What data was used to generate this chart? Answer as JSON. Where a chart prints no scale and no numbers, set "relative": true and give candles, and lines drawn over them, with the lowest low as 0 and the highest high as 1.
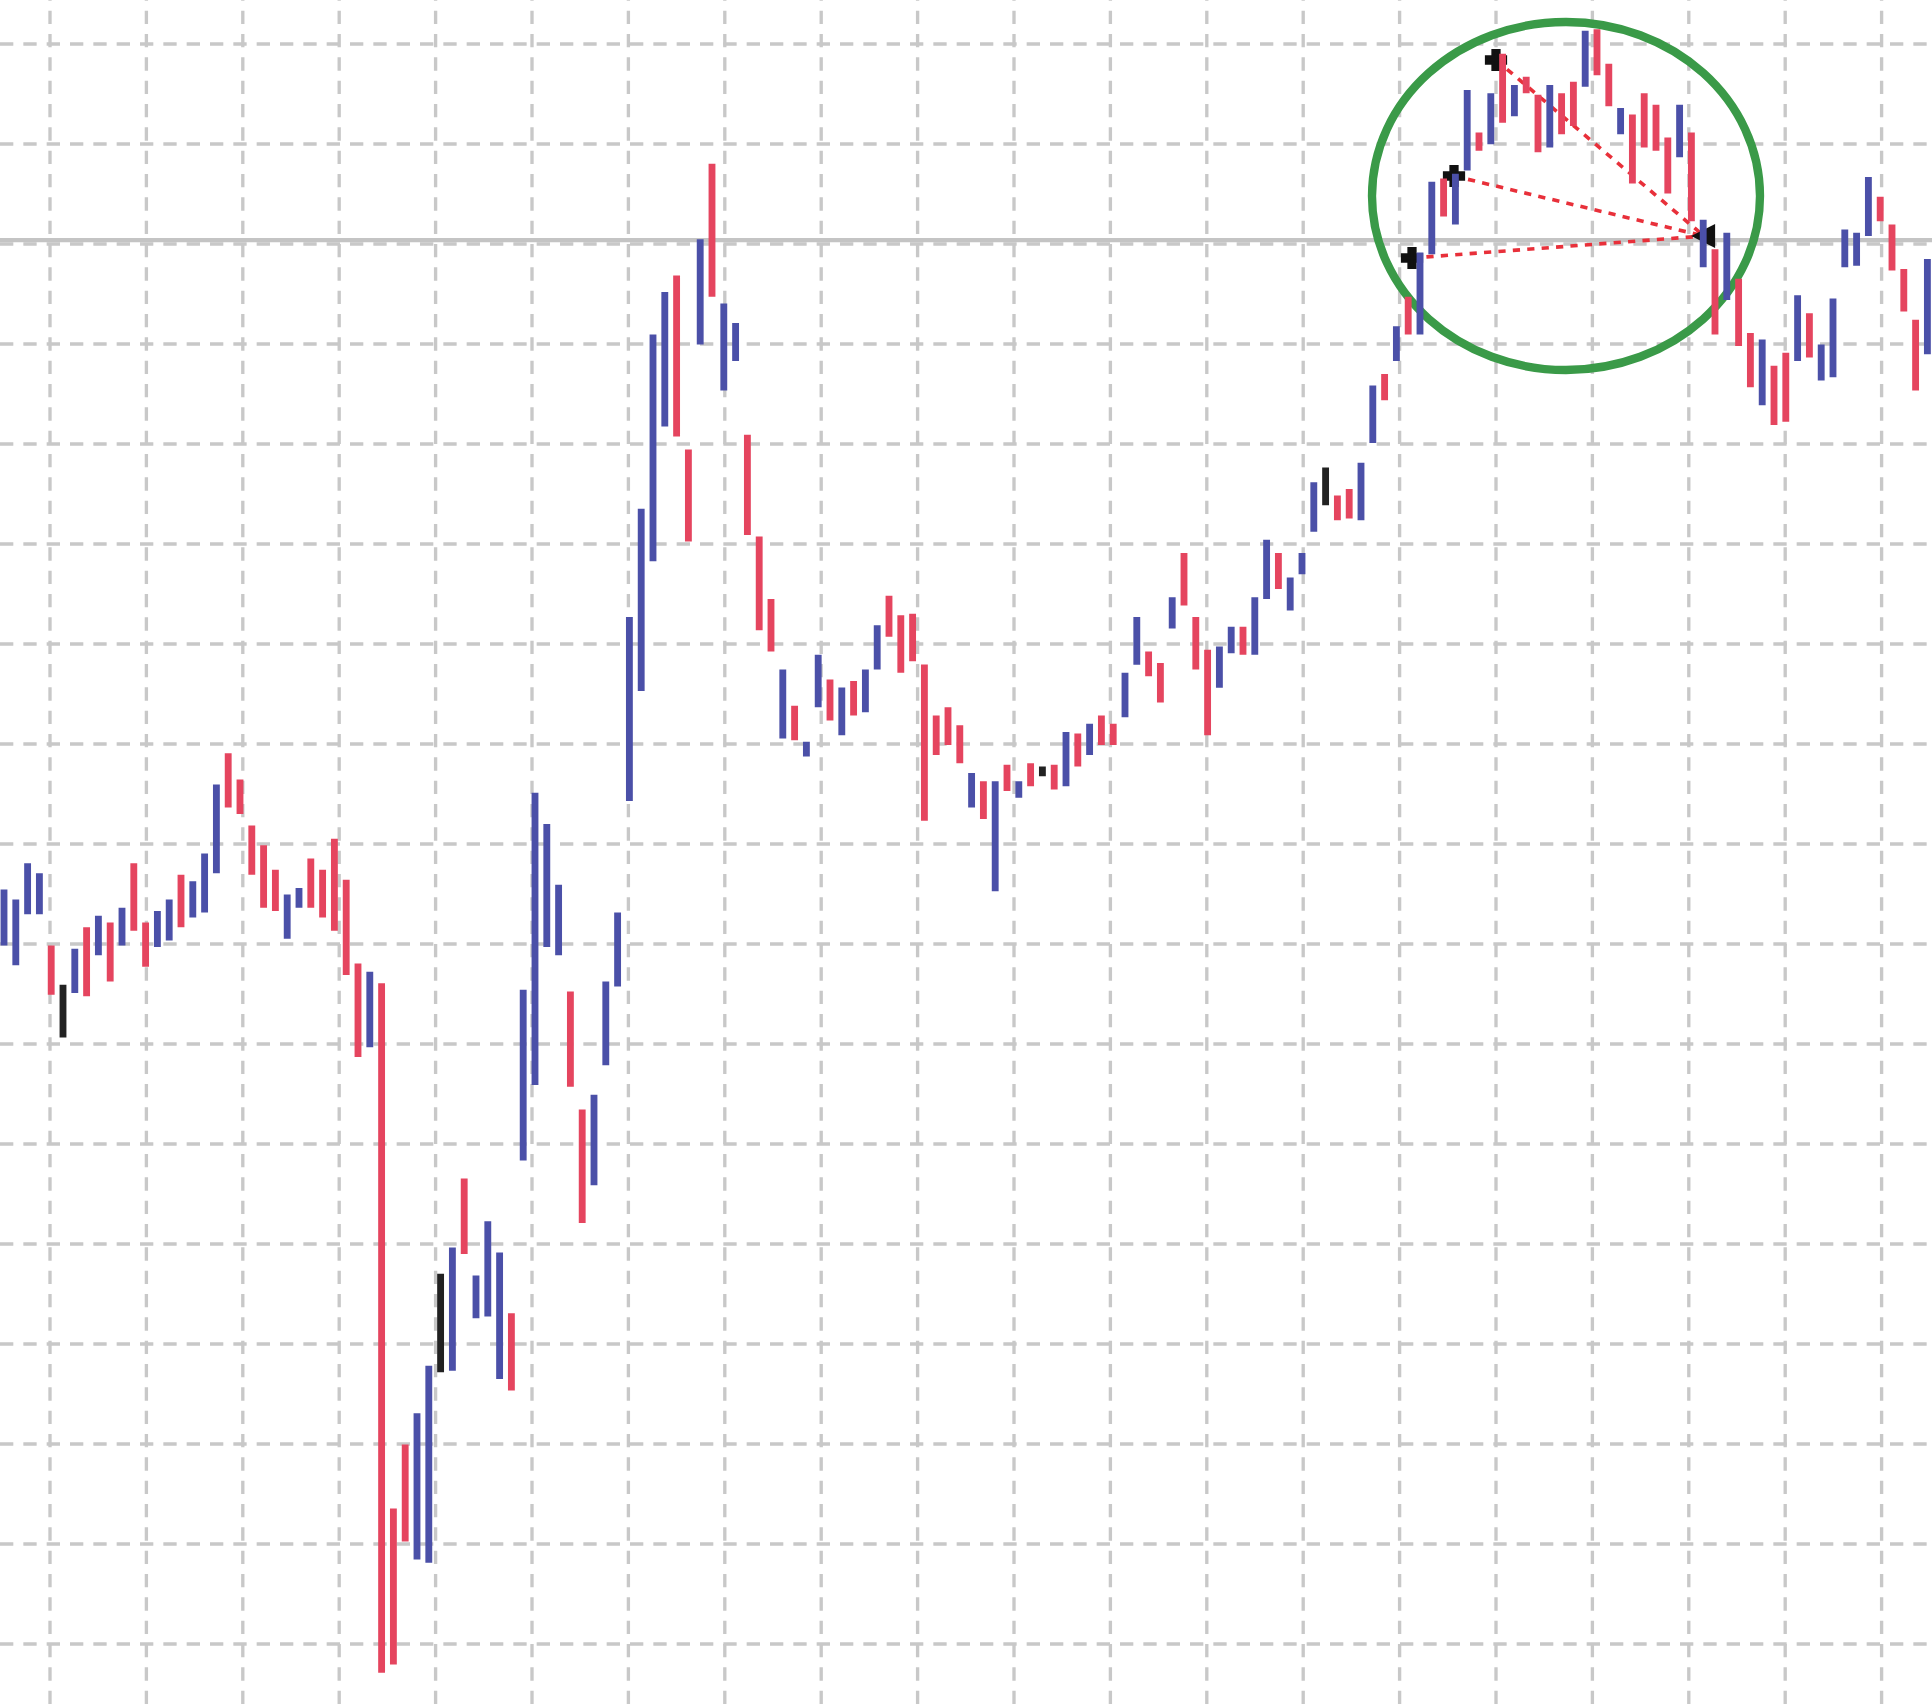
{
  "chart_data": {
    "type": "candlestick",
    "relative": true,
    "grid": true,
    "ref_lines": [
      {
        "axis": "y",
        "value": 0.872,
        "color": "#c4c4c4"
      }
    ],
    "categories": [
      null,
      null,
      null,
      null,
      null,
      null,
      null,
      null,
      null,
      null,
      null,
      null,
      null,
      null,
      null,
      null,
      null,
      null,
      null,
      null,
      null,
      null,
      null,
      null,
      null,
      null,
      null,
      null,
      null,
      null,
      null,
      null,
      null,
      null,
      null,
      null,
      null,
      null,
      null,
      null,
      null,
      null,
      null,
      null,
      null,
      null,
      null,
      null,
      null,
      null,
      null,
      null,
      null,
      null,
      null,
      null,
      null,
      null,
      null,
      null,
      null,
      null,
      null,
      null,
      null,
      null,
      null,
      null,
      null,
      null,
      null,
      null,
      null,
      null,
      null,
      null,
      null,
      null,
      null,
      null,
      null,
      null,
      null,
      null,
      null,
      null,
      null,
      null,
      null,
      null,
      null,
      null,
      null,
      null,
      null,
      null,
      null,
      null,
      null,
      null,
      null,
      null,
      null,
      null,
      null,
      null,
      null,
      null,
      null,
      null,
      null,
      null,
      null,
      null,
      null,
      null,
      null,
      null,
      null,
      null,
      null,
      null,
      null,
      null,
      null,
      null,
      null,
      null,
      null,
      null,
      null,
      null,
      null,
      null,
      null,
      null,
      null,
      null,
      null,
      null,
      null,
      null,
      null,
      null,
      null,
      null,
      null,
      null,
      null,
      null,
      null,
      null,
      null,
      null,
      null,
      null,
      null,
      null,
      null,
      null,
      null,
      null,
      null,
      null
    ],
    "ohlc": [
      [
        0.443,
        0.476,
        0.443,
        0.476
      ],
      [
        0.431,
        0.47,
        0.431,
        0.47
      ],
      [
        0.462,
        0.492,
        0.462,
        0.492
      ],
      [
        0.462,
        0.486,
        0.462,
        0.486
      ],
      [
        0.442,
        0.442,
        0.413,
        0.413
      ],
      [
        0.387,
        0.418,
        0.387,
        0.418
      ],
      [
        0.414,
        0.44,
        0.414,
        0.44
      ],
      [
        0.453,
        0.453,
        0.412,
        0.412
      ],
      [
        0.437,
        0.46,
        0.437,
        0.46
      ],
      [
        0.456,
        0.456,
        0.421,
        0.421
      ],
      [
        0.443,
        0.465,
        0.443,
        0.465
      ],
      [
        0.492,
        0.492,
        0.452,
        0.452
      ],
      [
        0.456,
        0.456,
        0.43,
        0.43
      ],
      [
        0.442,
        0.463,
        0.442,
        0.463
      ],
      [
        0.446,
        0.47,
        0.446,
        0.47
      ],
      [
        0.485,
        0.485,
        0.454,
        0.454
      ],
      [
        0.46,
        0.481,
        0.46,
        0.481
      ],
      [
        0.463,
        0.498,
        0.463,
        0.498
      ],
      [
        0.487,
        0.54,
        0.487,
        0.54
      ],
      [
        0.559,
        0.559,
        0.527,
        0.527
      ],
      [
        0.543,
        0.543,
        0.523,
        0.523
      ],
      [
        0.515,
        0.515,
        0.486,
        0.486
      ],
      [
        0.503,
        0.503,
        0.466,
        0.466
      ],
      [
        0.488,
        0.488,
        0.464,
        0.464
      ],
      [
        0.447,
        0.473,
        0.447,
        0.473
      ],
      [
        0.466,
        0.477,
        0.466,
        0.477
      ],
      [
        0.495,
        0.495,
        0.466,
        0.466
      ],
      [
        0.488,
        0.488,
        0.46,
        0.46
      ],
      [
        0.507,
        0.507,
        0.452,
        0.452
      ],
      [
        0.482,
        0.482,
        0.425,
        0.425
      ],
      [
        0.431,
        0.431,
        0.375,
        0.375
      ],
      [
        0.381,
        0.426,
        0.381,
        0.426
      ],
      [
        0.419,
        0.419,
        0,
        0
      ],
      [
        0.099,
        0.099,
        0.005,
        0.005
      ],
      [
        0.138,
        0.138,
        0.08,
        0.08
      ],
      [
        0.069,
        0.157,
        0.069,
        0.157
      ],
      [
        0.067,
        0.186,
        0.067,
        0.186
      ],
      [
        0.183,
        0.242,
        0.183,
        0.242
      ],
      [
        0.184,
        0.258,
        0.184,
        0.258
      ],
      [
        0.3,
        0.3,
        0.255,
        0.255
      ],
      [
        0.216,
        0.241,
        0.216,
        0.241
      ],
      [
        0.217,
        0.274,
        0.217,
        0.274
      ],
      [
        0.179,
        0.255,
        0.179,
        0.255
      ],
      [
        0.218,
        0.218,
        0.172,
        0.172
      ],
      [
        0.312,
        0.415,
        0.312,
        0.415
      ],
      [
        0.358,
        0.535,
        0.358,
        0.535
      ],
      [
        0.442,
        0.516,
        0.442,
        0.516
      ],
      [
        0.437,
        0.479,
        0.437,
        0.479
      ],
      [
        0.414,
        0.414,
        0.357,
        0.357
      ],
      [
        0.342,
        0.342,
        0.274,
        0.274
      ],
      [
        0.297,
        0.351,
        0.297,
        0.351
      ],
      [
        0.37,
        0.42,
        0.37,
        0.42
      ],
      [
        0.418,
        0.462,
        0.418,
        0.462
      ],
      [
        0.531,
        0.642,
        0.531,
        0.642
      ],
      [
        0.598,
        0.708,
        0.598,
        0.708
      ],
      [
        0.677,
        0.814,
        0.677,
        0.814
      ],
      [
        0.759,
        0.84,
        0.759,
        0.84
      ],
      [
        0.85,
        0.85,
        0.753,
        0.753
      ],
      [
        0.744,
        0.744,
        0.689,
        0.689
      ],
      [
        0.809,
        0.872,
        0.809,
        0.872
      ],
      [
        0.918,
        0.918,
        0.838,
        0.838
      ],
      [
        0.781,
        0.833,
        0.781,
        0.833
      ],
      [
        0.799,
        0.821,
        0.799,
        0.821
      ],
      [
        0.753,
        0.753,
        0.693,
        0.693
      ],
      [
        0.691,
        0.691,
        0.635,
        0.635
      ],
      [
        0.653,
        0.653,
        0.622,
        0.622
      ],
      [
        0.569,
        0.61,
        0.569,
        0.61
      ],
      [
        0.588,
        0.588,
        0.568,
        0.568
      ],
      [
        0.558,
        0.566,
        0.558,
        0.566
      ],
      [
        0.588,
        0.619,
        0.588,
        0.619
      ],
      [
        0.604,
        0.604,
        0.58,
        0.58
      ],
      [
        0.571,
        0.599,
        0.571,
        0.599
      ],
      [
        0.603,
        0.603,
        0.583,
        0.583
      ],
      [
        0.585,
        0.61,
        0.585,
        0.61
      ],
      [
        0.611,
        0.637,
        0.611,
        0.637
      ],
      [
        0.655,
        0.655,
        0.631,
        0.631
      ],
      [
        0.643,
        0.643,
        0.609,
        0.609
      ],
      [
        0.644,
        0.644,
        0.616,
        0.616
      ],
      [
        0.613,
        0.613,
        0.519,
        0.519
      ],
      [
        0.582,
        0.582,
        0.559,
        0.559
      ],
      [
        0.587,
        0.587,
        0.565,
        0.565
      ],
      [
        0.576,
        0.576,
        0.554,
        0.554
      ],
      [
        0.527,
        0.547,
        0.527,
        0.547
      ],
      [
        0.542,
        0.542,
        0.52,
        0.52
      ],
      [
        0.476,
        0.542,
        0.476,
        0.542
      ],
      [
        0.552,
        0.552,
        0.537,
        0.537
      ],
      [
        0.533,
        0.542,
        0.533,
        0.542
      ],
      [
        0.553,
        0.553,
        0.54,
        0.54
      ],
      [
        0.546,
        0.551,
        0.546,
        0.551
      ],
      [
        0.552,
        0.552,
        0.538,
        0.538
      ],
      [
        0.54,
        0.572,
        0.54,
        0.572
      ],
      [
        0.571,
        0.571,
        0.552,
        0.552
      ],
      [
        0.559,
        0.577,
        0.559,
        0.577
      ],
      [
        0.582,
        0.582,
        0.565,
        0.565
      ],
      [
        0.577,
        0.577,
        0.565,
        0.565
      ],
      [
        0.582,
        0.608,
        0.582,
        0.608
      ],
      [
        0.614,
        0.642,
        0.614,
        0.642
      ],
      [
        0.621,
        0.621,
        0.607,
        0.607
      ],
      [
        0.614,
        0.614,
        0.591,
        0.591
      ],
      [
        0.636,
        0.654,
        0.636,
        0.654
      ],
      [
        0.681,
        0.681,
        0.65,
        0.65
      ],
      [
        0.642,
        0.642,
        0.611,
        0.611
      ],
      [
        0.622,
        0.622,
        0.571,
        0.571
      ],
      [
        0.6,
        0.624,
        0.6,
        0.624
      ],
      [
        0.621,
        0.636,
        0.621,
        0.636
      ],
      [
        0.636,
        0.636,
        0.62,
        0.62
      ],
      [
        0.62,
        0.654,
        0.62,
        0.654
      ],
      [
        0.654,
        0.689,
        0.654,
        0.689
      ],
      [
        0.681,
        0.681,
        0.66,
        0.66
      ],
      [
        0.647,
        0.666,
        0.647,
        0.666
      ],
      [
        0.669,
        0.681,
        0.669,
        0.681
      ],
      [
        0.695,
        0.724,
        0.695,
        0.724
      ],
      [
        0.711,
        0.733,
        0.711,
        0.733
      ],
      [
        0.716,
        0.716,
        0.702,
        0.702
      ],
      [
        0.72,
        0.72,
        0.703,
        0.703
      ],
      [
        0.702,
        0.736,
        0.702,
        0.736
      ],
      [
        0.749,
        0.783,
        0.749,
        0.783
      ],
      [
        0.79,
        0.79,
        0.775,
        0.775
      ],
      [
        0.799,
        0.819,
        0.799,
        0.819
      ],
      [
        0.837,
        0.837,
        0.815,
        0.815
      ],
      [
        0.815,
        0.864,
        0.815,
        0.864
      ],
      [
        0.864,
        0.907,
        0.864,
        0.907
      ],
      [
        0.909,
        0.909,
        0.887,
        0.887
      ],
      [
        0.882,
        0.912,
        0.882,
        0.912
      ],
      [
        0.915,
        0.963,
        0.915,
        0.963
      ],
      [
        0.937,
        0.937,
        0.927,
        0.927
      ],
      [
        0.931,
        0.961,
        0.931,
        0.961
      ],
      [
        0.985,
        0.985,
        0.944,
        0.944
      ],
      [
        0.948,
        0.966,
        0.948,
        0.966
      ],
      [
        0.971,
        0.971,
        0.962,
        0.962
      ],
      [
        0.96,
        0.96,
        0.926,
        0.926
      ],
      [
        0.929,
        0.966,
        0.929,
        0.966
      ],
      [
        0.961,
        0.961,
        0.937,
        0.937
      ],
      [
        0.968,
        0.968,
        0.942,
        0.942
      ],
      [
        0.966,
        0.999,
        0.966,
        0.999
      ],
      [
        1.0,
        1.0,
        0.973,
        0.973
      ],
      [
        0.979,
        0.979,
        0.954,
        0.954
      ],
      [
        0.937,
        0.952,
        0.937,
        0.952
      ],
      [
        0.948,
        0.948,
        0.907,
        0.907
      ],
      [
        0.961,
        0.961,
        0.929,
        0.929
      ],
      [
        0.954,
        0.954,
        0.927,
        0.927
      ],
      [
        0.934,
        0.934,
        0.901,
        0.901
      ],
      [
        0.923,
        0.954,
        0.923,
        0.954
      ],
      [
        0.937,
        0.937,
        0.884,
        0.884
      ],
      [
        0.856,
        0.884,
        0.856,
        0.884
      ],
      [
        0.866,
        0.866,
        0.815,
        0.815
      ],
      [
        0.836,
        0.876,
        0.836,
        0.876
      ],
      [
        0.848,
        0.848,
        0.808,
        0.808
      ],
      [
        0.815,
        0.815,
        0.783,
        0.783
      ],
      [
        0.772,
        0.811,
        0.772,
        0.811
      ],
      [
        0.795,
        0.795,
        0.76,
        0.76
      ],
      [
        0.803,
        0.803,
        0.762,
        0.762
      ],
      [
        0.799,
        0.838,
        0.799,
        0.838
      ],
      [
        0.827,
        0.827,
        0.801,
        0.801
      ],
      [
        0.787,
        0.808,
        0.787,
        0.808
      ],
      [
        0.789,
        0.836,
        0.789,
        0.836
      ],
      [
        0.856,
        0.878,
        0.856,
        0.878
      ],
      [
        0.857,
        0.876,
        0.857,
        0.876
      ],
      [
        0.875,
        0.91,
        0.875,
        0.91
      ],
      [
        0.898,
        0.898,
        0.884,
        0.884
      ],
      [
        0.881,
        0.881,
        0.854,
        0.854
      ],
      [
        0.854,
        0.854,
        0.829,
        0.829
      ],
      [
        0.823,
        0.823,
        0.781,
        0.781
      ],
      [
        0.803,
        0.86,
        0.803,
        0.86
      ]
    ],
    "colors": [
      "#4b50a8",
      "#4b50a8",
      "#4b50a8",
      "#4b50a8",
      "#e5455f",
      "#222222",
      "#4b50a8",
      "#e5455f",
      "#4b50a8",
      "#e5455f",
      "#4b50a8",
      "#e5455f",
      "#e5455f",
      "#4b50a8",
      "#4b50a8",
      "#e5455f",
      "#4b50a8",
      "#4b50a8",
      "#4b50a8",
      "#e5455f",
      "#e5455f",
      "#e5455f",
      "#e5455f",
      "#e5455f",
      "#4b50a8",
      "#4b50a8",
      "#e5455f",
      "#e5455f",
      "#e5455f",
      "#e5455f",
      "#e5455f",
      "#4b50a8",
      "#e5455f",
      "#e5455f",
      "#e5455f",
      "#4b50a8",
      "#4b50a8",
      "#222222",
      "#4b50a8",
      "#e5455f",
      "#4b50a8",
      "#4b50a8",
      "#4b50a8",
      "#e5455f",
      "#4b50a8",
      "#4b50a8",
      "#4b50a8",
      "#4b50a8",
      "#e5455f",
      "#e5455f",
      "#4b50a8",
      "#4b50a8",
      "#4b50a8",
      "#4b50a8",
      "#4b50a8",
      "#4b50a8",
      "#4b50a8",
      "#e5455f",
      "#e5455f",
      "#4b50a8",
      "#e5455f",
      "#4b50a8",
      "#4b50a8",
      "#e5455f",
      "#e5455f",
      "#e5455f",
      "#4b50a8",
      "#e5455f",
      "#4b50a8",
      "#4b50a8",
      "#e5455f",
      "#4b50a8",
      "#e5455f",
      "#4b50a8",
      "#4b50a8",
      "#e5455f",
      "#e5455f",
      "#e5455f",
      "#e5455f",
      "#e5455f",
      "#e5455f",
      "#e5455f",
      "#4b50a8",
      "#e5455f",
      "#4b50a8",
      "#e5455f",
      "#4b50a8",
      "#e5455f",
      "#222222",
      "#e5455f",
      "#4b50a8",
      "#e5455f",
      "#4b50a8",
      "#e5455f",
      "#e5455f",
      "#4b50a8",
      "#4b50a8",
      "#e5455f",
      "#e5455f",
      "#4b50a8",
      "#e5455f",
      "#e5455f",
      "#e5455f",
      "#4b50a8",
      "#4b50a8",
      "#e5455f",
      "#4b50a8",
      "#4b50a8",
      "#e5455f",
      "#4b50a8",
      "#4b50a8",
      "#4b50a8",
      "#222222",
      "#e5455f",
      "#e5455f",
      "#4b50a8",
      "#4b50a8",
      "#e5455f",
      "#4b50a8",
      "#e5455f",
      "#4b50a8",
      "#4b50a8",
      "#e5455f",
      "#4b50a8",
      "#4b50a8",
      "#e5455f",
      "#4b50a8",
      "#e5455f",
      "#4b50a8",
      "#e5455f",
      "#e5455f",
      "#4b50a8",
      "#e5455f",
      "#e5455f",
      "#4b50a8",
      "#e5455f",
      "#e5455f",
      "#4b50a8",
      "#e5455f",
      "#e5455f",
      "#e5455f",
      "#e5455f",
      "#4b50a8",
      "#e5455f",
      "#4b50a8",
      "#e5455f",
      "#4b50a8",
      "#e5455f",
      "#e5455f",
      "#4b50a8",
      "#e5455f",
      "#e5455f",
      "#4b50a8",
      "#e5455f",
      "#4b50a8",
      "#4b50a8",
      "#4b50a8",
      "#4b50a8",
      "#4b50a8",
      "#e5455f",
      "#e5455f",
      "#e5455f",
      "#e5455f",
      "#4b50a8"
    ]
  }
}
